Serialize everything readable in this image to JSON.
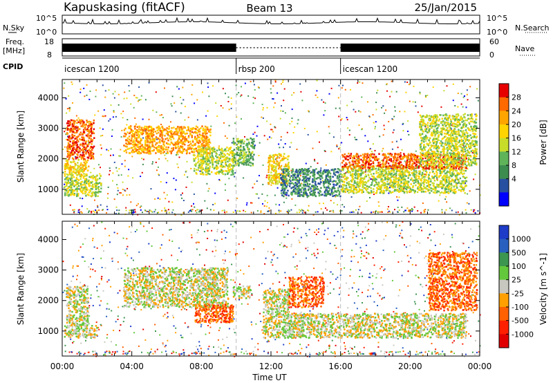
{
  "header": {
    "station": "Kapuskasing (fitACF)",
    "beam": "Beam 13",
    "date": "25/Jan/2015"
  },
  "status_panels": {
    "nsky_label": "N.Sky",
    "nsky_ticks": [
      "10^5",
      "10^0"
    ],
    "nsearch_label": "N.Search",
    "nsearch_ticks": [
      "10^5",
      "10^0"
    ],
    "freq_label": "Freq.",
    "freq_unit": "[MHz]",
    "freq_ticks": [
      "18",
      "8"
    ],
    "nave_label": "Nave",
    "nave_ticks": [
      "60",
      "0"
    ],
    "cpid_label": "CPID",
    "cpid_segments": [
      {
        "label": "icescan 1200",
        "start_hour": 0,
        "end_hour": 10
      },
      {
        "label": "rbsp 200",
        "start_hour": 10,
        "end_hour": 16
      },
      {
        "label": "icescan 1200",
        "start_hour": 16,
        "end_hour": 24
      }
    ]
  },
  "chart_data": [
    {
      "type": "heatmap",
      "name": "power",
      "ylabel": "Slant Range [km]",
      "xlim": [
        0,
        24
      ],
      "ylim": [
        180,
        4600
      ],
      "yticks": [
        "4000",
        "3000",
        "2000",
        "1000"
      ],
      "colorbar_label": "Power [dB]",
      "colorbar_ticks": [
        "28",
        "24",
        "20",
        "16",
        "12",
        "8",
        "4"
      ],
      "colorbar_colors": [
        "#e60000",
        "#ff6a00",
        "#ffa500",
        "#ffd400",
        "#c8dc2a",
        "#5fb45a",
        "#3c8c50",
        "#2850a0",
        "#0000ff"
      ],
      "regions": [
        {
          "t0": 0.1,
          "t1": 2.2,
          "r0": 800,
          "r1": 1500,
          "level": 4
        },
        {
          "t0": 0.1,
          "t1": 1.5,
          "r0": 1500,
          "r1": 2000,
          "level": 3
        },
        {
          "t0": 0.2,
          "t1": 1.8,
          "r0": 2000,
          "r1": 3300,
          "level": 1
        },
        {
          "t0": 3.5,
          "t1": 8.5,
          "r0": 2200,
          "r1": 3100,
          "level": 2
        },
        {
          "t0": 7.5,
          "t1": 9.8,
          "r0": 1500,
          "r1": 2400,
          "level": 4
        },
        {
          "t0": 9.8,
          "t1": 11.0,
          "r0": 1800,
          "r1": 2700,
          "level": 5
        },
        {
          "t0": 11.8,
          "t1": 13.0,
          "r0": 1200,
          "r1": 2200,
          "level": 3
        },
        {
          "t0": 12.5,
          "t1": 16.0,
          "r0": 800,
          "r1": 1700,
          "level": 6
        },
        {
          "t0": 16.0,
          "t1": 23.2,
          "r0": 900,
          "r1": 1800,
          "level": 4
        },
        {
          "t0": 16.0,
          "t1": 23.2,
          "r0": 1700,
          "r1": 2200,
          "level": 1
        },
        {
          "t0": 20.5,
          "t1": 23.8,
          "r0": 1800,
          "r1": 3500,
          "level": 4
        }
      ]
    },
    {
      "type": "heatmap",
      "name": "velocity",
      "ylabel": "Slant Range [km]",
      "xlabel": "Time UT",
      "xlim": [
        0,
        24
      ],
      "ylim": [
        180,
        4600
      ],
      "yticks": [
        "4000",
        "3000",
        "2000",
        "1000"
      ],
      "xticks": [
        "00:00",
        "04:00",
        "08:00",
        "12:00",
        "16:00",
        "20:00",
        "00:00"
      ],
      "colorbar_label": "Velocity [m s^-1]",
      "colorbar_ticks": [
        "1000",
        "500",
        "100",
        "25",
        "-25",
        "-100",
        "-500",
        "-1000"
      ],
      "colorbar_colors": [
        "#1e3cc8",
        "#2860c0",
        "#3c9650",
        "#64c83c",
        "#c8c8c0",
        "#ffa000",
        "#ff6000",
        "#ff2000",
        "#e00000"
      ],
      "regions": [
        {
          "t0": 0.1,
          "t1": 2.0,
          "r0": 800,
          "r1": 1200,
          "level": 4
        },
        {
          "t0": 0.2,
          "t1": 1.5,
          "r0": 1200,
          "r1": 2500,
          "level": 4
        },
        {
          "t0": 3.5,
          "t1": 9.5,
          "r0": 1800,
          "r1": 3100,
          "level": 4
        },
        {
          "t0": 7.5,
          "t1": 9.8,
          "r0": 1300,
          "r1": 1900,
          "level": 6
        },
        {
          "t0": 9.8,
          "t1": 10.8,
          "r0": 2100,
          "r1": 2500,
          "level": 4
        },
        {
          "t0": 11.5,
          "t1": 13.0,
          "r0": 800,
          "r1": 2400,
          "level": 4
        },
        {
          "t0": 13.0,
          "t1": 23.2,
          "r0": 800,
          "r1": 1600,
          "level": 4
        },
        {
          "t0": 13.0,
          "t1": 15.0,
          "r0": 1800,
          "r1": 2800,
          "level": 6
        },
        {
          "t0": 21.0,
          "t1": 23.8,
          "r0": 1700,
          "r1": 3600,
          "level": 6
        }
      ]
    }
  ]
}
